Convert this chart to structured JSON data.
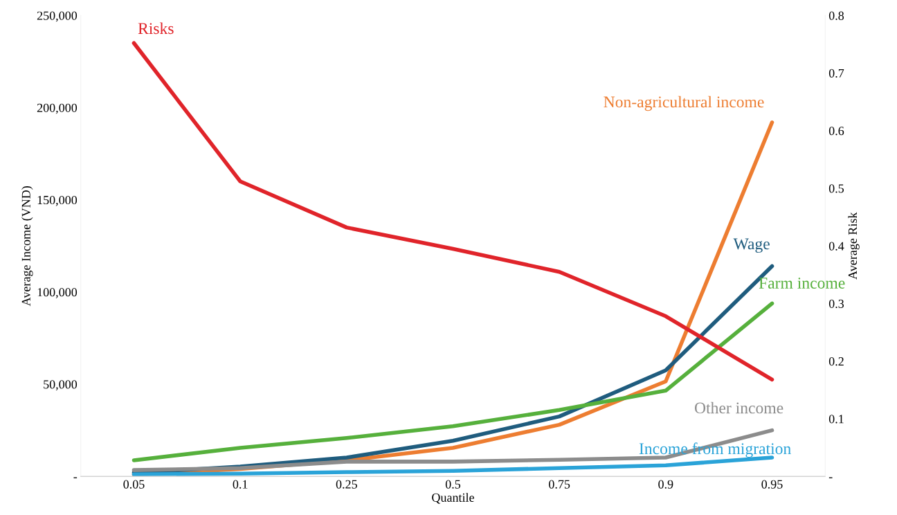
{
  "chart_data": {
    "type": "line",
    "xlabel": "Quantile",
    "ylabel": "Average Income (VND)",
    "y2label": "Average Risk",
    "categories": [
      "0.05",
      "0.1",
      "0.25",
      "0.5",
      "0.75",
      "0.9",
      "0.95"
    ],
    "ylim": [
      0,
      250000
    ],
    "yticks": [
      {
        "value": 0,
        "label": "-"
      },
      {
        "value": 50000,
        "label": "50,000"
      },
      {
        "value": 100000,
        "label": "100,000"
      },
      {
        "value": 150000,
        "label": "150,000"
      },
      {
        "value": 200000,
        "label": "200,000"
      },
      {
        "value": 250000,
        "label": "250,000"
      }
    ],
    "y2lim": [
      0,
      0.8
    ],
    "y2ticks": [
      {
        "value": 0,
        "label": "-"
      },
      0.1,
      0.2,
      0.3,
      0.4,
      0.5,
      0.6,
      0.7,
      0.8
    ],
    "grid": false,
    "legend": false,
    "marker": "none",
    "line_style": "solid",
    "series": [
      {
        "name": "Risks",
        "color": "#e0242a",
        "axis": "y2",
        "values": [
          0.752,
          0.512,
          0.432,
          0.395,
          0.355,
          0.278,
          0.168
        ]
      },
      {
        "name": "Non-agricultural income",
        "color": "#ed7d31",
        "values": [
          1000,
          4000,
          8700,
          15500,
          28000,
          51500,
          192000
        ]
      },
      {
        "name": "Wage",
        "color": "#1f5c7e",
        "values": [
          2000,
          5300,
          10200,
          19300,
          32500,
          57500,
          114000
        ]
      },
      {
        "name": "Farm income",
        "color": "#56b03c",
        "values": [
          8700,
          15500,
          20800,
          27200,
          36000,
          46500,
          93800
        ]
      },
      {
        "name": "Other income",
        "color": "#8c8c8c",
        "values": [
          3400,
          4500,
          8000,
          8000,
          9000,
          10200,
          25000
        ]
      },
      {
        "name": "Income from migration",
        "color": "#2aa3d8",
        "values": [
          1100,
          1500,
          2300,
          3000,
          4500,
          6000,
          10200
        ]
      }
    ]
  }
}
